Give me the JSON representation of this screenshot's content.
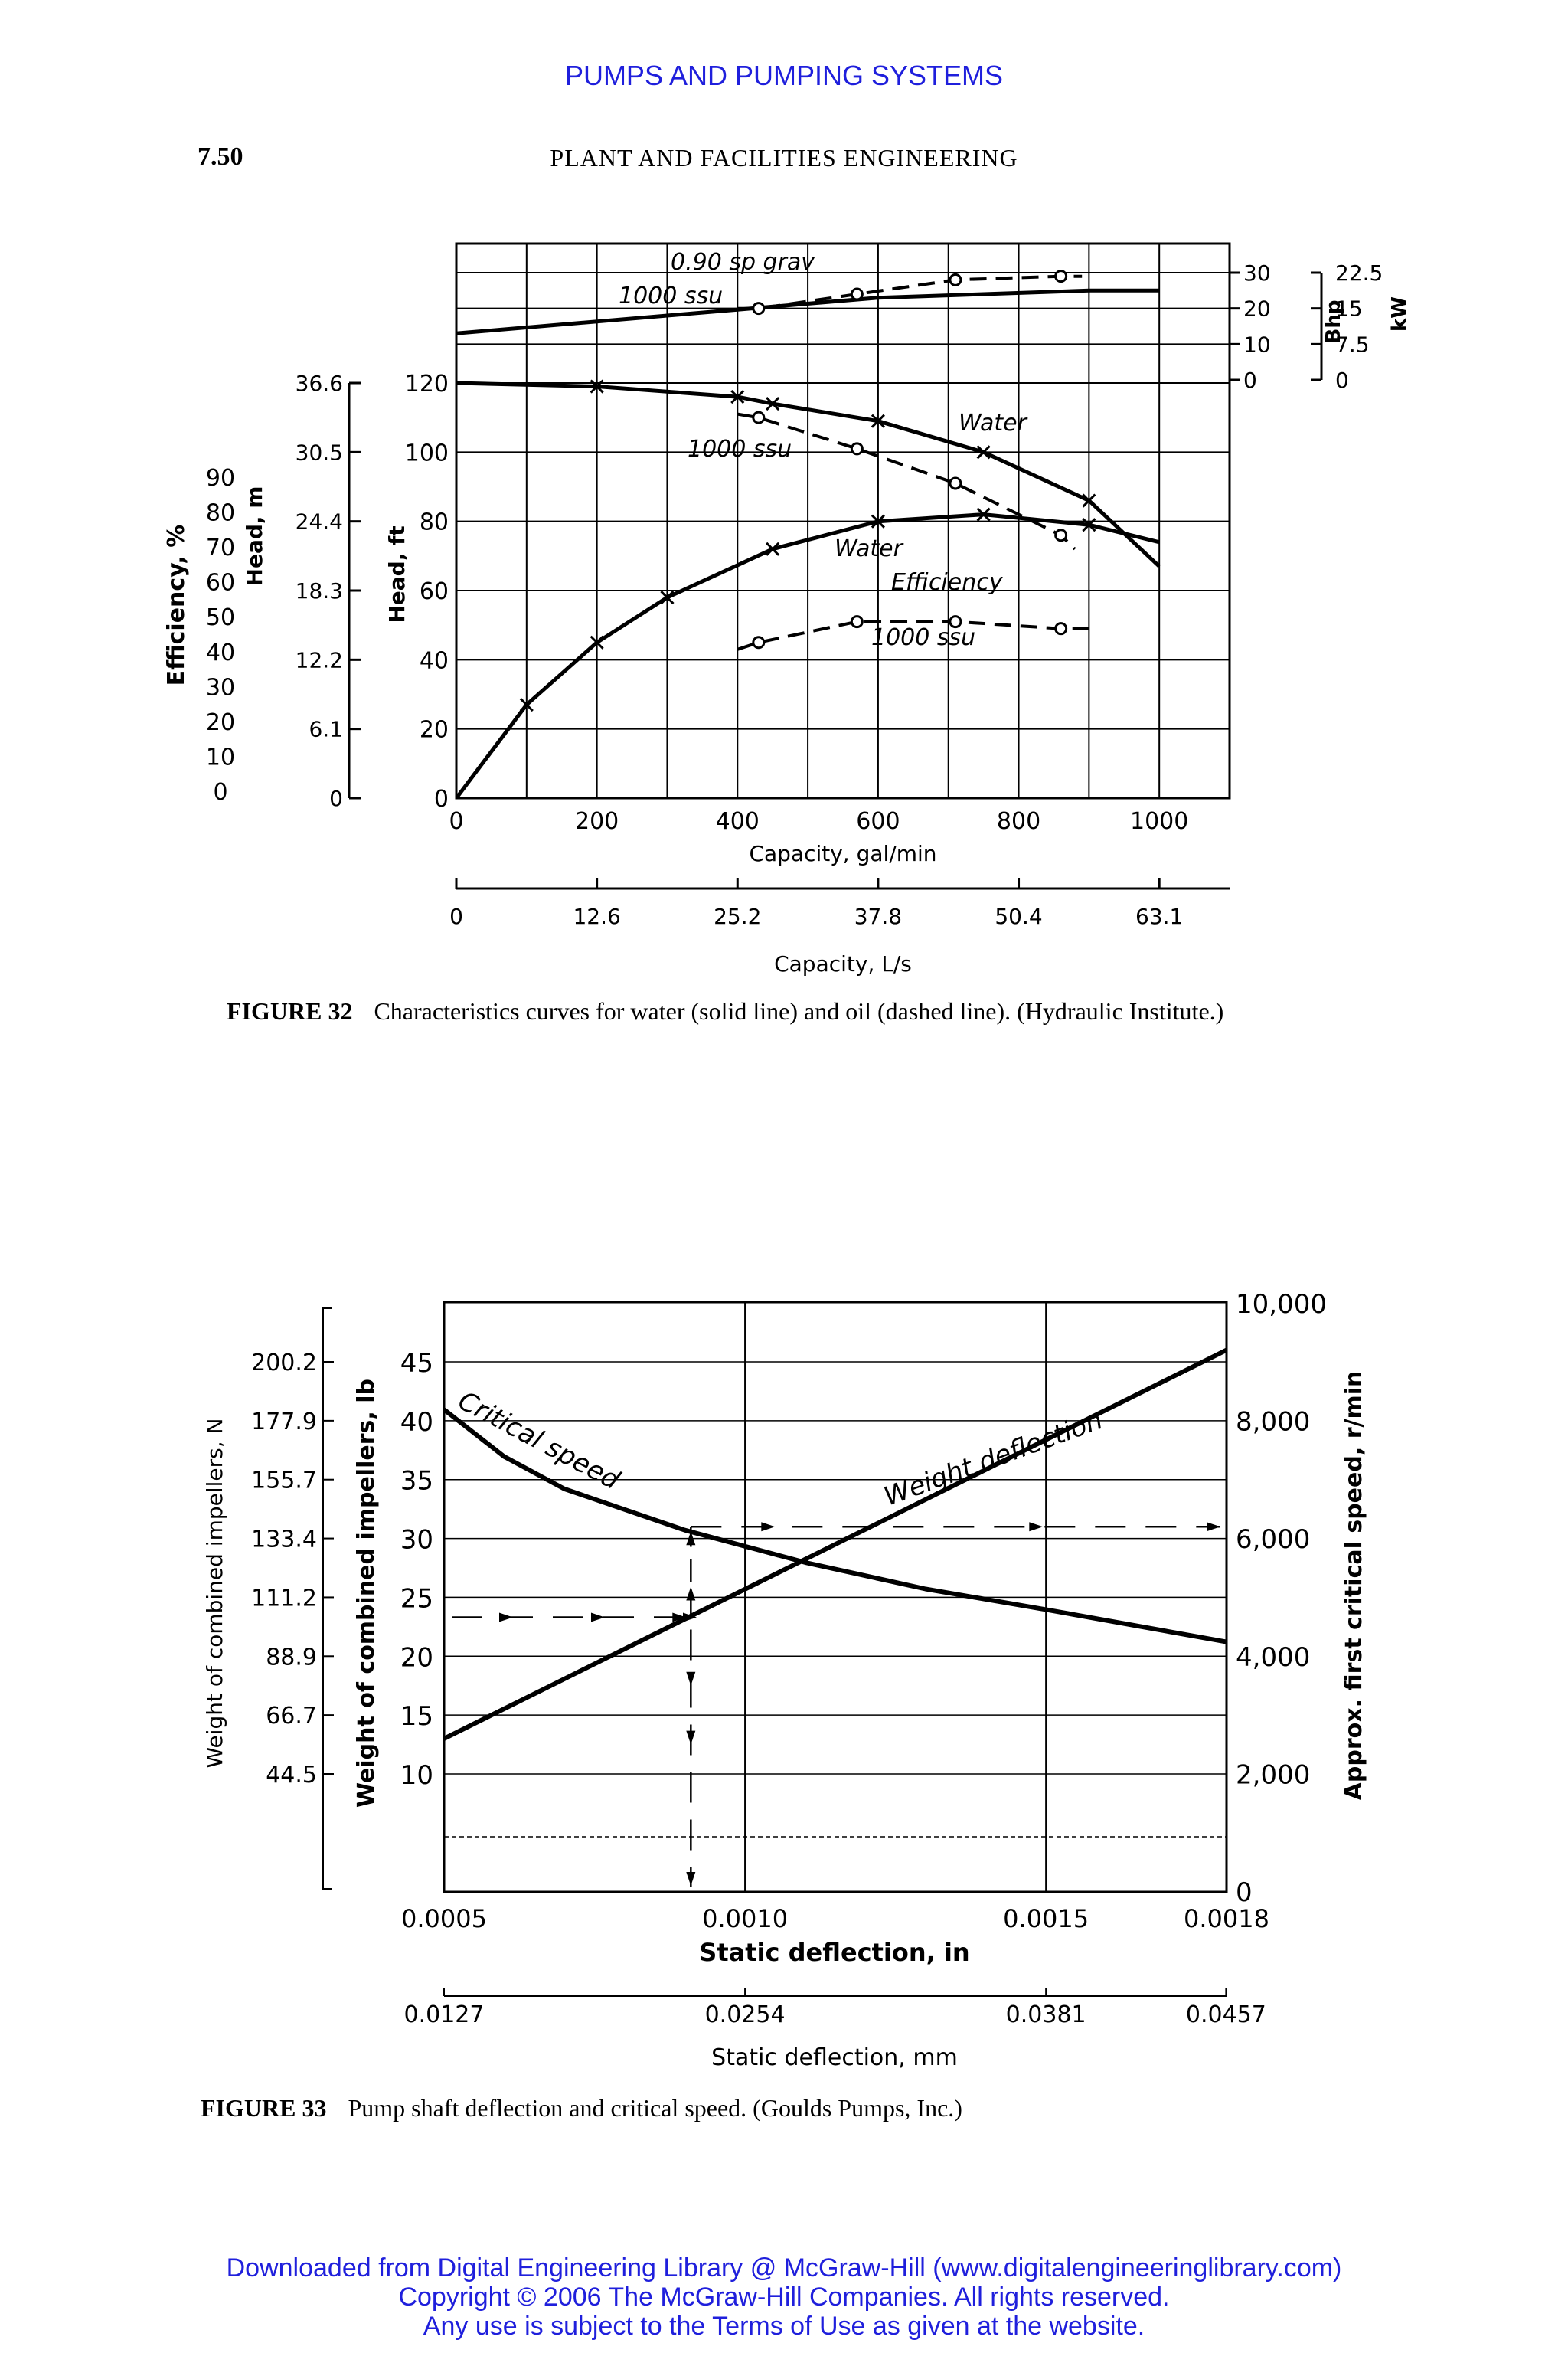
{
  "header": {
    "top_title": "PUMPS AND PUMPING SYSTEMS",
    "page_number": "7.50",
    "running_title": "PLANT AND FACILITIES ENGINEERING"
  },
  "figure32": {
    "caption_label": "FIGURE 32",
    "caption_text": "Characteristics curves for water (solid line) and oil (dashed line). (Hydraulic Institute.)",
    "axes": {
      "efficiency_label": "Efficiency, %",
      "head_m_label": "Head, m",
      "head_ft_label": "Head, ft",
      "bhp_label": "Bhp",
      "kw_label": "kW",
      "x_label": "Capacity, gal/min",
      "x2_label": "Capacity, L/s"
    },
    "annotations": {
      "oil_spec_1": "0.90 sp grav",
      "oil_spec_2": "1000 ssu",
      "head_oil": "1000 ssu",
      "head_water": "Water",
      "eff_water": "Water",
      "eff_word": "Efficiency",
      "eff_oil": "1000 ssu"
    }
  },
  "figure33": {
    "caption_label": "FIGURE 33",
    "caption_text": "Pump shaft deflection and critical speed. (Goulds Pumps, Inc.)",
    "axes": {
      "left_n_label": "Weight of combined impellers, N",
      "left_lb_label": "Weight of combined impellers, lb",
      "right_label": "Approx. first critical speed, r/min",
      "x_label": "Static deflection, in",
      "x2_label": "Static deflection, mm"
    },
    "annotations": {
      "critical_speed": "Critical speed",
      "weight_deflection": "Weight deflection"
    }
  },
  "chart_data": [
    {
      "type": "line",
      "x_unit": "gal/min",
      "xlim": [
        0,
        1100
      ],
      "x_ticks": [
        0,
        200,
        400,
        600,
        800,
        1000
      ],
      "x2_ticks": [
        "0",
        "12.6",
        "25.2",
        "37.8",
        "50.4",
        "63.1"
      ],
      "head_ft_ticks": [
        0,
        20,
        40,
        60,
        80,
        100,
        120
      ],
      "head_m_ticks": [
        "0",
        "6.1",
        "12.2",
        "18.3",
        "24.4",
        "30.5",
        "36.6"
      ],
      "efficiency_ticks": [
        0,
        10,
        20,
        30,
        40,
        50,
        60,
        70,
        80,
        90
      ],
      "bhp_ticks": [
        0,
        10,
        20,
        30
      ],
      "kw_ticks": [
        "0",
        "7.5",
        "15",
        "22.5"
      ],
      "grid": true,
      "series": [
        {
          "name": "Water head",
          "axis": "head_ft",
          "style": "solid",
          "x": [
            0,
            200,
            400,
            450,
            600,
            750,
            900,
            1000
          ],
          "y": [
            120,
            119,
            116,
            114,
            109,
            100,
            86,
            67
          ]
        },
        {
          "name": "1000 ssu head",
          "axis": "head_ft",
          "style": "dashed",
          "x": [
            400,
            430,
            570,
            710,
            860,
            880
          ],
          "y": [
            111,
            110,
            101,
            91,
            76,
            72
          ]
        },
        {
          "name": "Water efficiency",
          "axis": "efficiency",
          "style": "solid",
          "x": [
            0,
            100,
            200,
            300,
            450,
            600,
            750,
            900,
            1000
          ],
          "y": [
            0,
            27,
            45,
            58,
            72,
            80,
            82,
            79,
            74
          ]
        },
        {
          "name": "1000 ssu efficiency",
          "axis": "efficiency",
          "style": "dashed",
          "x": [
            400,
            430,
            570,
            710,
            860,
            900
          ],
          "y": [
            43,
            45,
            51,
            51,
            49,
            49
          ]
        },
        {
          "name": "Water Bhp",
          "axis": "bhp",
          "style": "solid",
          "x": [
            0,
            300,
            600,
            900,
            1000
          ],
          "y": [
            13,
            18,
            23,
            25,
            25
          ]
        },
        {
          "name": "1000 ssu Bhp",
          "axis": "bhp",
          "style": "dashed",
          "x": [
            400,
            430,
            570,
            710,
            860,
            890
          ],
          "y": [
            20,
            20,
            24,
            28,
            29,
            29
          ]
        }
      ]
    },
    {
      "type": "line",
      "x_unit": "in",
      "xlim": [
        0.0005,
        0.0018
      ],
      "x_ticks": [
        "0.0005",
        "0.0010",
        "0.0015",
        "0.0018"
      ],
      "x2_ticks": [
        "0.0127",
        "0.0254",
        "0.0381",
        "0.0457"
      ],
      "lb_ticks": [
        10,
        15,
        20,
        25,
        30,
        35,
        40,
        45
      ],
      "n_ticks": [
        "44.5",
        "66.7",
        "88.9",
        "111.2",
        "133.4",
        "155.7",
        "177.9",
        "200.2"
      ],
      "rpm_ticks": [
        "0",
        "2,000",
        "4,000",
        "6,000",
        "8,000",
        "10,000"
      ],
      "grid": true,
      "series": [
        {
          "name": "Critical speed",
          "axis": "rpm",
          "style": "solid",
          "x": [
            0.0005,
            0.0006,
            0.0007,
            0.0009,
            0.0011,
            0.0013,
            0.0015,
            0.0018
          ],
          "y": [
            8200,
            7400,
            6850,
            6150,
            5600,
            5150,
            4800,
            4250
          ]
        },
        {
          "name": "Weight deflection",
          "axis": "lb",
          "style": "solid",
          "x": [
            0.0005,
            0.0018
          ],
          "y": [
            13,
            46
          ]
        }
      ]
    }
  ]
}
